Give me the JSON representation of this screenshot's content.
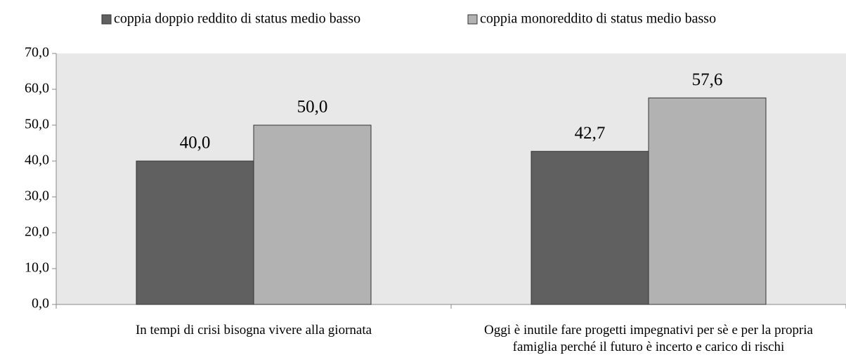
{
  "chart_data": {
    "type": "bar",
    "categories": [
      "In tempi di crisi bisogna vivere alla giornata",
      "Oggi è inutile fare progetti impegnativi per sè e per la propria famiglia perché il futuro è incerto e carico di rischi"
    ],
    "series": [
      {
        "name": "coppia doppio reddito di status medio basso",
        "color": "#606060",
        "values": [
          40.0,
          42.7
        ],
        "value_labels": [
          "40,0",
          "42,7"
        ]
      },
      {
        "name": "coppia monoreddito di status medio basso",
        "color": "#b2b2b2",
        "values": [
          50.0,
          57.6
        ],
        "value_labels": [
          "50,0",
          "57,6"
        ]
      }
    ],
    "ylim": [
      0,
      70
    ],
    "yticks": [
      {
        "value": 0,
        "label": "0,0"
      },
      {
        "value": 10,
        "label": "10,0"
      },
      {
        "value": 20,
        "label": "20,0"
      },
      {
        "value": 30,
        "label": "30,0"
      },
      {
        "value": 40,
        "label": "40,0"
      },
      {
        "value": 50,
        "label": "50,0"
      },
      {
        "value": 60,
        "label": "60,0"
      },
      {
        "value": 70,
        "label": "70,0"
      }
    ],
    "legend": "top",
    "plot_background": "#e8e8e8"
  }
}
